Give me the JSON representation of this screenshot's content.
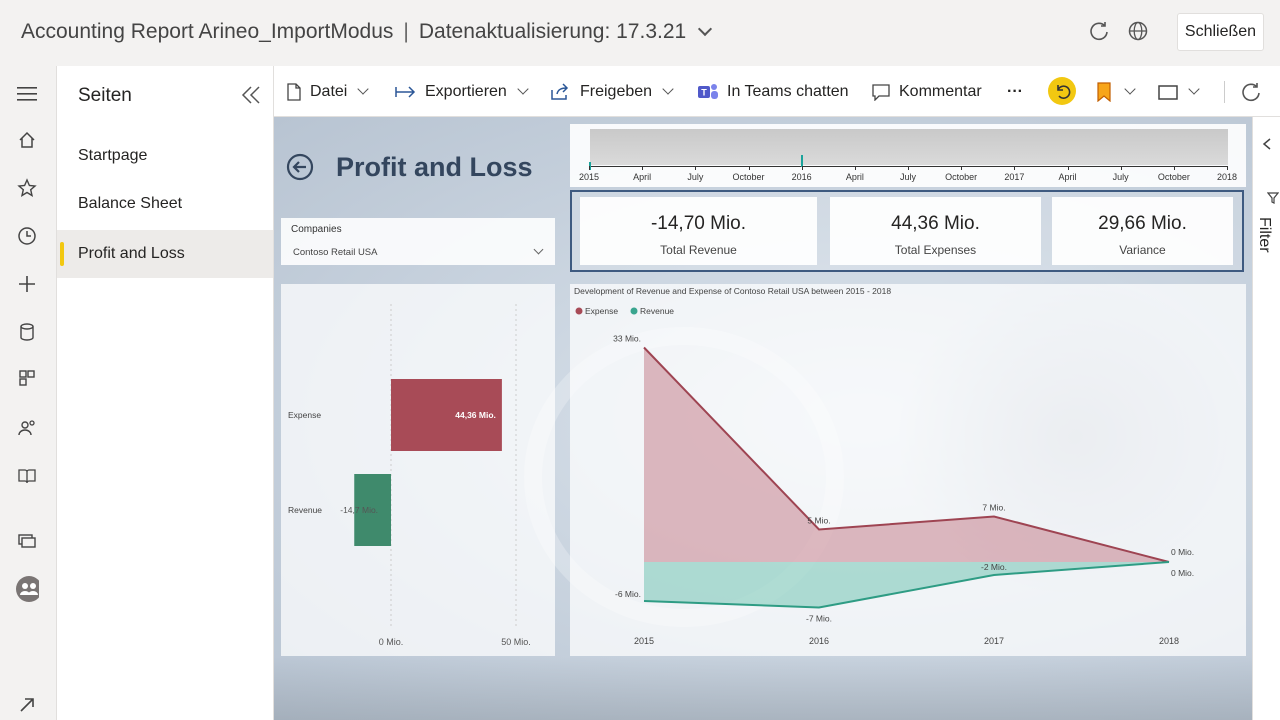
{
  "titlebar": {
    "report_name": "Accounting Report Arineo_ImportModus",
    "separator": "|",
    "refresh_text": "Datenaktualisierung: 17.3.21",
    "close_label": "Schließen"
  },
  "pages_pane": {
    "title": "Seiten",
    "items": [
      {
        "label": "Startpage"
      },
      {
        "label": "Balance Sheet"
      },
      {
        "label": "Profit and Loss",
        "active": true
      }
    ]
  },
  "toolbar": {
    "file": "Datei",
    "export": "Exportieren",
    "share": "Freigeben",
    "teams": "In Teams chatten",
    "comment": "Kommentar",
    "more": "···"
  },
  "report": {
    "title": "Profit and Loss",
    "slicer": {
      "label": "Companies",
      "value": "Contoso Retail USA"
    },
    "timeline": {
      "ticks": [
        "2015",
        "April",
        "July",
        "October",
        "2016",
        "April",
        "July",
        "October",
        "2017",
        "April",
        "July",
        "October",
        "2018"
      ]
    },
    "kpis": [
      {
        "value": "-14,70 Mio.",
        "label": "Total Revenue"
      },
      {
        "value": "44,36 Mio.",
        "label": "Total Expenses"
      },
      {
        "value": "29,66 Mio.",
        "label": "Variance"
      }
    ]
  },
  "right_pane": {
    "label": "Filter"
  },
  "colors": {
    "expense": "#a84b57",
    "revenue": "#3aa58f",
    "accent": "#f2c811",
    "title": "#34465e"
  },
  "chart_data": [
    {
      "type": "bar",
      "orientation": "horizontal",
      "categories": [
        "Expense",
        "Revenue"
      ],
      "values": [
        44.36,
        -14.7
      ],
      "data_labels": [
        "44,36 Mio.",
        "-14,7 Mio."
      ],
      "x_ticks": [
        "0 Mio.",
        "50 Mio."
      ],
      "xlim": [
        -20,
        60
      ]
    },
    {
      "type": "area",
      "title": "Development of Revenue and Expense of Contoso Retail USA between 2015 - 2018",
      "legend": [
        "Expense",
        "Revenue"
      ],
      "legend_position": "top-left",
      "x": [
        "2015",
        "2016",
        "2017",
        "2018"
      ],
      "series": [
        {
          "name": "Expense",
          "values": [
            33,
            5,
            7,
            0
          ],
          "labels": [
            "33 Mio.",
            "5 Mio.",
            "7 Mio.",
            "0 Mio."
          ]
        },
        {
          "name": "Revenue",
          "values": [
            -6,
            -7,
            -2,
            0
          ],
          "labels": [
            "-6 Mio.",
            "-7 Mio.",
            "-2 Mio.",
            "0 Mio."
          ]
        }
      ],
      "ylim": [
        -8,
        34
      ]
    }
  ]
}
